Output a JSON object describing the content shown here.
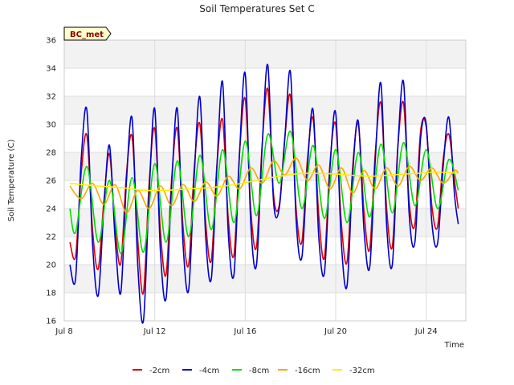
{
  "chart_data": {
    "type": "line",
    "title": "Soil Temperatures Set C",
    "xlabel": "Time",
    "ylabel": "Soil Temperature (C)",
    "badge": "BC_met",
    "xlim": [
      "2024-07-08",
      "2024-07-25T18:00"
    ],
    "xticks": [
      {
        "label": "Jul 8",
        "date": "2024-07-08"
      },
      {
        "label": "Jul 12",
        "date": "2024-07-12"
      },
      {
        "label": "Jul 16",
        "date": "2024-07-16"
      },
      {
        "label": "Jul 20",
        "date": "2024-07-20"
      },
      {
        "label": "Jul 24",
        "date": "2024-07-24"
      }
    ],
    "ylim": [
      16,
      36
    ],
    "yticks": [
      16,
      18,
      20,
      22,
      24,
      26,
      28,
      30,
      32,
      34,
      36
    ],
    "grid": true,
    "legend_position": "bottom",
    "series": [
      {
        "name": "-2cm",
        "color": "#dd0000",
        "points": [
          [
            "2024-07-08T06:00",
            21.6
          ],
          [
            "2024-07-08T12:00",
            20.6
          ],
          [
            "2024-07-08T18:00",
            26.5
          ],
          [
            "2024-07-09T00:00",
            29.2
          ],
          [
            "2024-07-09T06:00",
            22.5
          ],
          [
            "2024-07-09T12:00",
            19.7
          ],
          [
            "2024-07-09T18:00",
            24.5
          ],
          [
            "2024-07-10T00:00",
            27.9
          ],
          [
            "2024-07-10T06:00",
            22.6
          ],
          [
            "2024-07-10T12:00",
            20.1
          ],
          [
            "2024-07-10T18:00",
            26.5
          ],
          [
            "2024-07-11T00:00",
            29.1
          ],
          [
            "2024-07-11T06:00",
            21.8
          ],
          [
            "2024-07-11T12:00",
            18.0
          ],
          [
            "2024-07-11T18:00",
            25.7
          ],
          [
            "2024-07-12T00:00",
            29.7
          ],
          [
            "2024-07-12T06:00",
            22.4
          ],
          [
            "2024-07-12T12:00",
            19.3
          ],
          [
            "2024-07-12T18:00",
            26.2
          ],
          [
            "2024-07-13T00:00",
            29.7
          ],
          [
            "2024-07-13T06:00",
            22.7
          ],
          [
            "2024-07-13T12:00",
            20.0
          ],
          [
            "2024-07-13T18:00",
            27.0
          ],
          [
            "2024-07-14T00:00",
            30.0
          ],
          [
            "2024-07-14T06:00",
            23.0
          ],
          [
            "2024-07-14T12:00",
            20.3
          ],
          [
            "2024-07-14T18:00",
            27.1
          ],
          [
            "2024-07-15T00:00",
            30.3
          ],
          [
            "2024-07-15T06:00",
            23.3
          ],
          [
            "2024-07-15T12:00",
            20.7
          ],
          [
            "2024-07-15T18:00",
            28.0
          ],
          [
            "2024-07-16T00:00",
            31.8
          ],
          [
            "2024-07-16T06:00",
            23.8
          ],
          [
            "2024-07-16T12:00",
            21.3
          ],
          [
            "2024-07-16T18:00",
            28.6
          ],
          [
            "2024-07-17T00:00",
            32.5
          ],
          [
            "2024-07-17T06:00",
            25.0
          ],
          [
            "2024-07-17T12:00",
            24.2
          ],
          [
            "2024-07-17T18:00",
            29.0
          ],
          [
            "2024-07-18T00:00",
            32.0
          ],
          [
            "2024-07-18T06:00",
            24.0
          ],
          [
            "2024-07-18T12:00",
            21.6
          ],
          [
            "2024-07-18T18:00",
            27.5
          ],
          [
            "2024-07-19T00:00",
            30.4
          ],
          [
            "2024-07-19T06:00",
            23.5
          ],
          [
            "2024-07-19T12:00",
            20.5
          ],
          [
            "2024-07-19T18:00",
            27.3
          ],
          [
            "2024-07-20T00:00",
            30.0
          ],
          [
            "2024-07-20T06:00",
            22.9
          ],
          [
            "2024-07-20T12:00",
            20.2
          ],
          [
            "2024-07-20T18:00",
            27.0
          ],
          [
            "2024-07-21T00:00",
            30.0
          ],
          [
            "2024-07-21T06:00",
            23.8
          ],
          [
            "2024-07-21T12:00",
            21.1
          ],
          [
            "2024-07-21T18:00",
            28.0
          ],
          [
            "2024-07-22T00:00",
            31.5
          ],
          [
            "2024-07-22T06:00",
            24.0
          ],
          [
            "2024-07-22T12:00",
            21.3
          ],
          [
            "2024-07-22T18:00",
            28.5
          ],
          [
            "2024-07-23T00:00",
            31.5
          ],
          [
            "2024-07-23T06:00",
            24.4
          ],
          [
            "2024-07-23T12:00",
            22.9
          ],
          [
            "2024-07-23T18:00",
            29.5
          ],
          [
            "2024-07-24T00:00",
            29.8
          ],
          [
            "2024-07-24T06:00",
            24.2
          ],
          [
            "2024-07-24T12:00",
            22.7
          ],
          [
            "2024-07-24T18:00",
            27.5
          ],
          [
            "2024-07-25T00:00",
            29.3
          ],
          [
            "2024-07-25T06:00",
            26.0
          ],
          [
            "2024-07-25T10:00",
            24.0
          ]
        ]
      },
      {
        "name": "-4cm",
        "color": "#0000cc",
        "points": [
          [
            "2024-07-08T06:00",
            20.0
          ],
          [
            "2024-07-08T12:00",
            19.0
          ],
          [
            "2024-07-08T18:00",
            27.5
          ],
          [
            "2024-07-09T00:00",
            31.0
          ],
          [
            "2024-07-09T06:00",
            21.5
          ],
          [
            "2024-07-09T12:00",
            17.8
          ],
          [
            "2024-07-09T18:00",
            24.0
          ],
          [
            "2024-07-10T00:00",
            28.5
          ],
          [
            "2024-07-10T06:00",
            21.8
          ],
          [
            "2024-07-10T12:00",
            18.0
          ],
          [
            "2024-07-10T18:00",
            26.0
          ],
          [
            "2024-07-11T00:00",
            30.4
          ],
          [
            "2024-07-11T06:00",
            20.0
          ],
          [
            "2024-07-11T12:00",
            16.0
          ],
          [
            "2024-07-11T18:00",
            25.0
          ],
          [
            "2024-07-12T00:00",
            31.1
          ],
          [
            "2024-07-12T06:00",
            21.0
          ],
          [
            "2024-07-12T12:00",
            17.6
          ],
          [
            "2024-07-12T18:00",
            25.8
          ],
          [
            "2024-07-13T00:00",
            31.1
          ],
          [
            "2024-07-13T06:00",
            21.5
          ],
          [
            "2024-07-13T12:00",
            18.2
          ],
          [
            "2024-07-13T18:00",
            26.5
          ],
          [
            "2024-07-14T00:00",
            31.9
          ],
          [
            "2024-07-14T06:00",
            22.0
          ],
          [
            "2024-07-14T12:00",
            19.0
          ],
          [
            "2024-07-14T18:00",
            27.0
          ],
          [
            "2024-07-15T00:00",
            33.0
          ],
          [
            "2024-07-15T06:00",
            22.3
          ],
          [
            "2024-07-15T12:00",
            19.3
          ],
          [
            "2024-07-15T18:00",
            28.0
          ],
          [
            "2024-07-16T00:00",
            33.6
          ],
          [
            "2024-07-16T06:00",
            22.8
          ],
          [
            "2024-07-16T12:00",
            20.0
          ],
          [
            "2024-07-16T18:00",
            28.5
          ],
          [
            "2024-07-17T00:00",
            34.2
          ],
          [
            "2024-07-17T06:00",
            24.5
          ],
          [
            "2024-07-17T12:00",
            24.0
          ],
          [
            "2024-07-17T18:00",
            29.0
          ],
          [
            "2024-07-18T00:00",
            33.7
          ],
          [
            "2024-07-18T06:00",
            23.2
          ],
          [
            "2024-07-18T12:00",
            20.5
          ],
          [
            "2024-07-18T18:00",
            27.0
          ],
          [
            "2024-07-19T00:00",
            31.0
          ],
          [
            "2024-07-19T06:00",
            22.0
          ],
          [
            "2024-07-19T12:00",
            19.4
          ],
          [
            "2024-07-19T18:00",
            27.0
          ],
          [
            "2024-07-20T00:00",
            30.8
          ],
          [
            "2024-07-20T06:00",
            21.5
          ],
          [
            "2024-07-20T12:00",
            18.5
          ],
          [
            "2024-07-20T18:00",
            26.5
          ],
          [
            "2024-07-21T00:00",
            30.2
          ],
          [
            "2024-07-21T06:00",
            22.5
          ],
          [
            "2024-07-21T12:00",
            19.8
          ],
          [
            "2024-07-21T18:00",
            27.5
          ],
          [
            "2024-07-22T00:00",
            32.9
          ],
          [
            "2024-07-22T06:00",
            22.8
          ],
          [
            "2024-07-22T12:00",
            20.0
          ],
          [
            "2024-07-22T18:00",
            28.5
          ],
          [
            "2024-07-23T00:00",
            33.0
          ],
          [
            "2024-07-23T06:00",
            23.5
          ],
          [
            "2024-07-23T12:00",
            21.6
          ],
          [
            "2024-07-23T18:00",
            29.0
          ],
          [
            "2024-07-24T00:00",
            30.0
          ],
          [
            "2024-07-24T06:00",
            23.0
          ],
          [
            "2024-07-24T12:00",
            21.5
          ],
          [
            "2024-07-24T18:00",
            27.0
          ],
          [
            "2024-07-25T00:00",
            30.5
          ],
          [
            "2024-07-25T06:00",
            25.0
          ],
          [
            "2024-07-25T10:00",
            22.9
          ]
        ]
      },
      {
        "name": "-8cm",
        "color": "#00dd00",
        "points": [
          [
            "2024-07-08T06:00",
            24.0
          ],
          [
            "2024-07-08T12:00",
            22.3
          ],
          [
            "2024-07-09T00:00",
            27.0
          ],
          [
            "2024-07-09T12:00",
            21.6
          ],
          [
            "2024-07-10T00:00",
            26.0
          ],
          [
            "2024-07-10T12:00",
            20.8
          ],
          [
            "2024-07-11T00:00",
            26.2
          ],
          [
            "2024-07-11T12:00",
            20.9
          ],
          [
            "2024-07-12T00:00",
            27.2
          ],
          [
            "2024-07-12T12:00",
            21.6
          ],
          [
            "2024-07-13T00:00",
            27.4
          ],
          [
            "2024-07-13T12:00",
            22.0
          ],
          [
            "2024-07-14T00:00",
            27.8
          ],
          [
            "2024-07-14T12:00",
            22.5
          ],
          [
            "2024-07-15T00:00",
            28.2
          ],
          [
            "2024-07-15T12:00",
            23.0
          ],
          [
            "2024-07-16T00:00",
            28.8
          ],
          [
            "2024-07-16T12:00",
            23.5
          ],
          [
            "2024-07-17T00:00",
            29.3
          ],
          [
            "2024-07-17T12:00",
            25.8
          ],
          [
            "2024-07-18T00:00",
            29.5
          ],
          [
            "2024-07-18T12:00",
            24.0
          ],
          [
            "2024-07-19T00:00",
            28.5
          ],
          [
            "2024-07-19T12:00",
            23.3
          ],
          [
            "2024-07-20T00:00",
            28.2
          ],
          [
            "2024-07-20T12:00",
            23.0
          ],
          [
            "2024-07-21T00:00",
            28.0
          ],
          [
            "2024-07-21T12:00",
            23.4
          ],
          [
            "2024-07-22T00:00",
            28.6
          ],
          [
            "2024-07-22T12:00",
            23.7
          ],
          [
            "2024-07-23T00:00",
            28.7
          ],
          [
            "2024-07-23T12:00",
            24.2
          ],
          [
            "2024-07-24T00:00",
            28.2
          ],
          [
            "2024-07-24T12:00",
            24.0
          ],
          [
            "2024-07-25T00:00",
            27.5
          ],
          [
            "2024-07-25T10:00",
            25.3
          ]
        ]
      },
      {
        "name": "-16cm",
        "color": "#ffa500",
        "points": [
          [
            "2024-07-08T06:00",
            25.6
          ],
          [
            "2024-07-08T18:00",
            24.7
          ],
          [
            "2024-07-09T06:00",
            25.8
          ],
          [
            "2024-07-09T18:00",
            24.3
          ],
          [
            "2024-07-10T06:00",
            25.7
          ],
          [
            "2024-07-10T18:00",
            23.7
          ],
          [
            "2024-07-11T06:00",
            25.3
          ],
          [
            "2024-07-11T18:00",
            24.0
          ],
          [
            "2024-07-12T06:00",
            25.6
          ],
          [
            "2024-07-12T18:00",
            24.2
          ],
          [
            "2024-07-13T06:00",
            25.7
          ],
          [
            "2024-07-13T18:00",
            24.5
          ],
          [
            "2024-07-14T06:00",
            25.9
          ],
          [
            "2024-07-14T18:00",
            24.9
          ],
          [
            "2024-07-15T06:00",
            26.3
          ],
          [
            "2024-07-15T18:00",
            25.4
          ],
          [
            "2024-07-16T06:00",
            26.9
          ],
          [
            "2024-07-16T18:00",
            25.8
          ],
          [
            "2024-07-17T06:00",
            27.4
          ],
          [
            "2024-07-17T18:00",
            26.4
          ],
          [
            "2024-07-18T06:00",
            27.6
          ],
          [
            "2024-07-18T18:00",
            26.0
          ],
          [
            "2024-07-19T06:00",
            27.1
          ],
          [
            "2024-07-19T18:00",
            25.4
          ],
          [
            "2024-07-20T06:00",
            26.9
          ],
          [
            "2024-07-20T18:00",
            25.1
          ],
          [
            "2024-07-21T06:00",
            26.7
          ],
          [
            "2024-07-21T18:00",
            25.4
          ],
          [
            "2024-07-22T06:00",
            26.9
          ],
          [
            "2024-07-22T18:00",
            25.6
          ],
          [
            "2024-07-23T06:00",
            27.0
          ],
          [
            "2024-07-23T18:00",
            26.0
          ],
          [
            "2024-07-24T06:00",
            26.9
          ],
          [
            "2024-07-24T18:00",
            25.8
          ],
          [
            "2024-07-25T06:00",
            26.7
          ],
          [
            "2024-07-25T10:00",
            26.5
          ]
        ]
      },
      {
        "name": "-32cm",
        "color": "#ffee00",
        "points": [
          [
            "2024-07-08T06:00",
            25.8
          ],
          [
            "2024-07-09T12:00",
            25.6
          ],
          [
            "2024-07-10T12:00",
            25.5
          ],
          [
            "2024-07-11T12:00",
            25.3
          ],
          [
            "2024-07-12T12:00",
            25.3
          ],
          [
            "2024-07-13T12:00",
            25.4
          ],
          [
            "2024-07-14T12:00",
            25.5
          ],
          [
            "2024-07-15T12:00",
            25.7
          ],
          [
            "2024-07-16T12:00",
            26.0
          ],
          [
            "2024-07-17T12:00",
            26.3
          ],
          [
            "2024-07-18T12:00",
            26.5
          ],
          [
            "2024-07-19T12:00",
            26.5
          ],
          [
            "2024-07-20T12:00",
            26.4
          ],
          [
            "2024-07-21T12:00",
            26.3
          ],
          [
            "2024-07-22T12:00",
            26.4
          ],
          [
            "2024-07-23T12:00",
            26.5
          ],
          [
            "2024-07-24T12:00",
            26.6
          ],
          [
            "2024-07-25T10:00",
            26.5
          ]
        ]
      }
    ]
  }
}
